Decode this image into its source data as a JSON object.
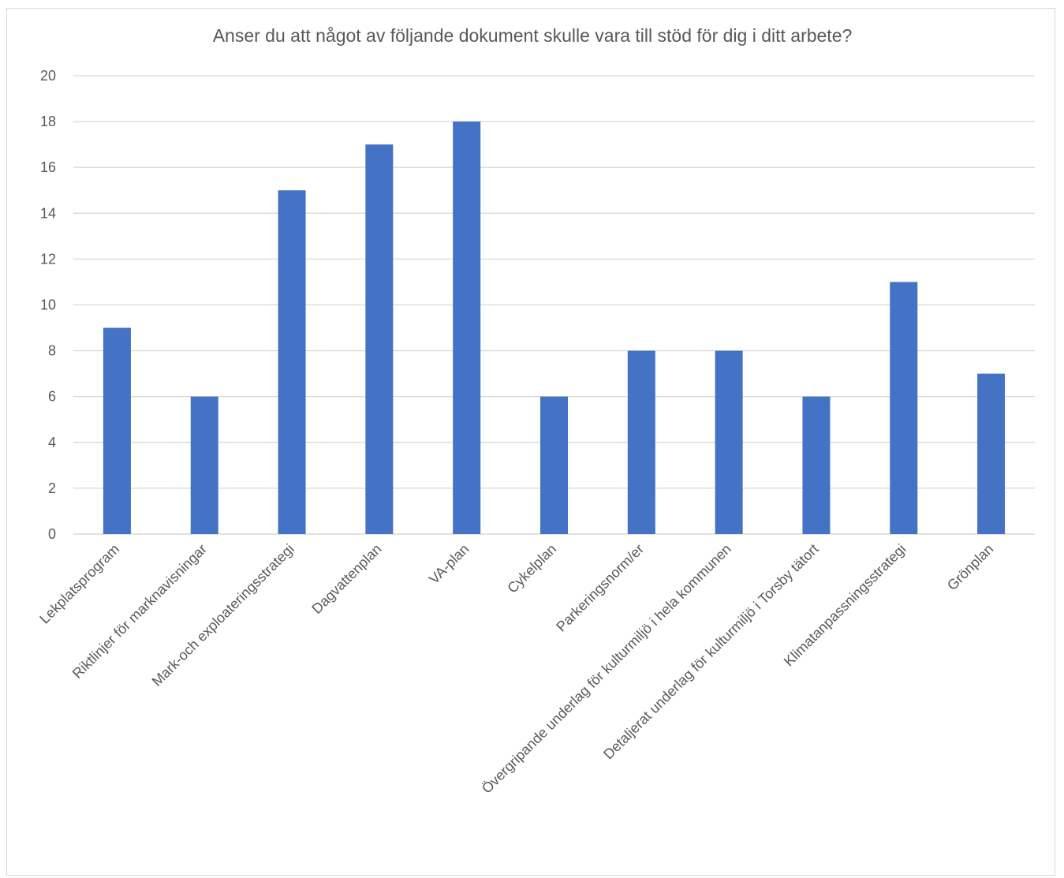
{
  "chart_data": {
    "type": "bar",
    "title": "Anser du att något av följande dokument skulle vara till stöd för dig i ditt arbete?",
    "categories": [
      "Lekplatsprogram",
      "Riktlinjer för marknavisningar",
      "Mark-och exploateringsstrategi",
      "Dagvattenplan",
      "VA-plan",
      "Cykelplan",
      "Parkeringsnorm/er",
      "Övergripande underlag för kulturmiljö i hela kommunen",
      "Detaljerat underlag för kulturmiljö i Torsby tätort",
      "Klimatanpassningsstrategi",
      "Grönplan"
    ],
    "values": [
      9,
      6,
      15,
      17,
      18,
      6,
      8,
      8,
      6,
      11,
      7
    ],
    "ylim": [
      0,
      20
    ],
    "yticks": [
      "0",
      "2",
      "4",
      "6",
      "8",
      "10",
      "12",
      "14",
      "16",
      "18",
      "20"
    ],
    "xlabel": "",
    "ylabel": "",
    "grid": true,
    "legend": "none",
    "bar_color": "#4472C4"
  }
}
